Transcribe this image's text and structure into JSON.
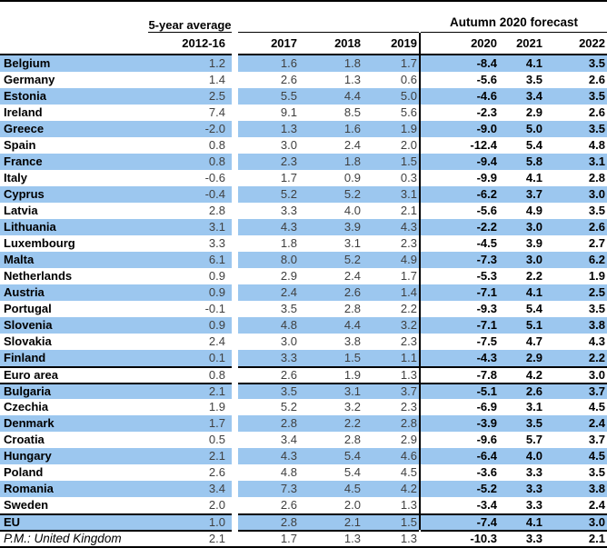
{
  "chart_data": {
    "type": "table",
    "column_group_left": "5-year average",
    "column_group_right": "Autumn 2020 forecast",
    "columns": [
      "2012-16",
      "2017",
      "2018",
      "2019",
      "2020",
      "2021",
      "2022"
    ],
    "forecast_columns": [
      "2020",
      "2021",
      "2022"
    ],
    "rows": [
      {
        "name": "Belgium",
        "shaded": true,
        "values": [
          "1.2",
          "1.6",
          "1.8",
          "1.7",
          "-8.4",
          "4.1",
          "3.5"
        ]
      },
      {
        "name": "Germany",
        "shaded": false,
        "values": [
          "1.4",
          "2.6",
          "1.3",
          "0.6",
          "-5.6",
          "3.5",
          "2.6"
        ]
      },
      {
        "name": "Estonia",
        "shaded": true,
        "values": [
          "2.5",
          "5.5",
          "4.4",
          "5.0",
          "-4.6",
          "3.4",
          "3.5"
        ]
      },
      {
        "name": "Ireland",
        "shaded": false,
        "values": [
          "7.4",
          "9.1",
          "8.5",
          "5.6",
          "-2.3",
          "2.9",
          "2.6"
        ]
      },
      {
        "name": "Greece",
        "shaded": true,
        "values": [
          "-2.0",
          "1.3",
          "1.6",
          "1.9",
          "-9.0",
          "5.0",
          "3.5"
        ]
      },
      {
        "name": "Spain",
        "shaded": false,
        "values": [
          "0.8",
          "3.0",
          "2.4",
          "2.0",
          "-12.4",
          "5.4",
          "4.8"
        ]
      },
      {
        "name": "France",
        "shaded": true,
        "values": [
          "0.8",
          "2.3",
          "1.8",
          "1.5",
          "-9.4",
          "5.8",
          "3.1"
        ]
      },
      {
        "name": "Italy",
        "shaded": false,
        "values": [
          "-0.6",
          "1.7",
          "0.9",
          "0.3",
          "-9.9",
          "4.1",
          "2.8"
        ]
      },
      {
        "name": "Cyprus",
        "shaded": true,
        "values": [
          "-0.4",
          "5.2",
          "5.2",
          "3.1",
          "-6.2",
          "3.7",
          "3.0"
        ]
      },
      {
        "name": "Latvia",
        "shaded": false,
        "values": [
          "2.8",
          "3.3",
          "4.0",
          "2.1",
          "-5.6",
          "4.9",
          "3.5"
        ]
      },
      {
        "name": "Lithuania",
        "shaded": true,
        "values": [
          "3.1",
          "4.3",
          "3.9",
          "4.3",
          "-2.2",
          "3.0",
          "2.6"
        ]
      },
      {
        "name": "Luxembourg",
        "shaded": false,
        "values": [
          "3.3",
          "1.8",
          "3.1",
          "2.3",
          "-4.5",
          "3.9",
          "2.7"
        ]
      },
      {
        "name": "Malta",
        "shaded": true,
        "values": [
          "6.1",
          "8.0",
          "5.2",
          "4.9",
          "-7.3",
          "3.0",
          "6.2"
        ]
      },
      {
        "name": "Netherlands",
        "shaded": false,
        "values": [
          "0.9",
          "2.9",
          "2.4",
          "1.7",
          "-5.3",
          "2.2",
          "1.9"
        ]
      },
      {
        "name": "Austria",
        "shaded": true,
        "values": [
          "0.9",
          "2.4",
          "2.6",
          "1.4",
          "-7.1",
          "4.1",
          "2.5"
        ]
      },
      {
        "name": "Portugal",
        "shaded": false,
        "values": [
          "-0.1",
          "3.5",
          "2.8",
          "2.2",
          "-9.3",
          "5.4",
          "3.5"
        ]
      },
      {
        "name": "Slovenia",
        "shaded": true,
        "values": [
          "0.9",
          "4.8",
          "4.4",
          "3.2",
          "-7.1",
          "5.1",
          "3.8"
        ]
      },
      {
        "name": "Slovakia",
        "shaded": false,
        "values": [
          "2.4",
          "3.0",
          "3.8",
          "2.3",
          "-7.5",
          "4.7",
          "4.3"
        ]
      },
      {
        "name": "Finland",
        "shaded": true,
        "values": [
          "0.1",
          "3.3",
          "1.5",
          "1.1",
          "-4.3",
          "2.9",
          "2.2"
        ]
      },
      {
        "name": "Euro area",
        "shaded": false,
        "border_top": true,
        "values": [
          "0.8",
          "2.6",
          "1.9",
          "1.3",
          "-7.8",
          "4.2",
          "3.0"
        ]
      },
      {
        "name": "Bulgaria",
        "shaded": true,
        "border_top": true,
        "values": [
          "2.1",
          "3.5",
          "3.1",
          "3.7",
          "-5.1",
          "2.6",
          "3.7"
        ]
      },
      {
        "name": "Czechia",
        "shaded": false,
        "values": [
          "1.9",
          "5.2",
          "3.2",
          "2.3",
          "-6.9",
          "3.1",
          "4.5"
        ]
      },
      {
        "name": "Denmark",
        "shaded": true,
        "values": [
          "1.7",
          "2.8",
          "2.2",
          "2.8",
          "-3.9",
          "3.5",
          "2.4"
        ]
      },
      {
        "name": "Croatia",
        "shaded": false,
        "values": [
          "0.5",
          "3.4",
          "2.8",
          "2.9",
          "-9.6",
          "5.7",
          "3.7"
        ]
      },
      {
        "name": "Hungary",
        "shaded": true,
        "values": [
          "2.1",
          "4.3",
          "5.4",
          "4.6",
          "-6.4",
          "4.0",
          "4.5"
        ]
      },
      {
        "name": "Poland",
        "shaded": false,
        "values": [
          "2.6",
          "4.8",
          "5.4",
          "4.5",
          "-3.6",
          "3.3",
          "3.5"
        ]
      },
      {
        "name": "Romania",
        "shaded": true,
        "values": [
          "3.4",
          "7.3",
          "4.5",
          "4.2",
          "-5.2",
          "3.3",
          "3.8"
        ]
      },
      {
        "name": "Sweden",
        "shaded": false,
        "values": [
          "2.0",
          "2.6",
          "2.0",
          "1.3",
          "-3.4",
          "3.3",
          "2.4"
        ]
      },
      {
        "name": "EU",
        "shaded": true,
        "border_top": true,
        "values": [
          "1.0",
          "2.8",
          "2.1",
          "1.5",
          "-7.4",
          "4.1",
          "3.0"
        ]
      },
      {
        "name": "P.M.: United Kingdom",
        "shaded": false,
        "border_top": true,
        "italic": true,
        "no_vline": true,
        "values": [
          "2.1",
          "1.7",
          "1.3",
          "1.3",
          "-10.3",
          "3.3",
          "2.1"
        ]
      }
    ]
  },
  "colors": {
    "row_highlight": "#9CC7EF",
    "rule": "#000000",
    "number_text": "#3F3F3F",
    "label_text": "#000000"
  }
}
